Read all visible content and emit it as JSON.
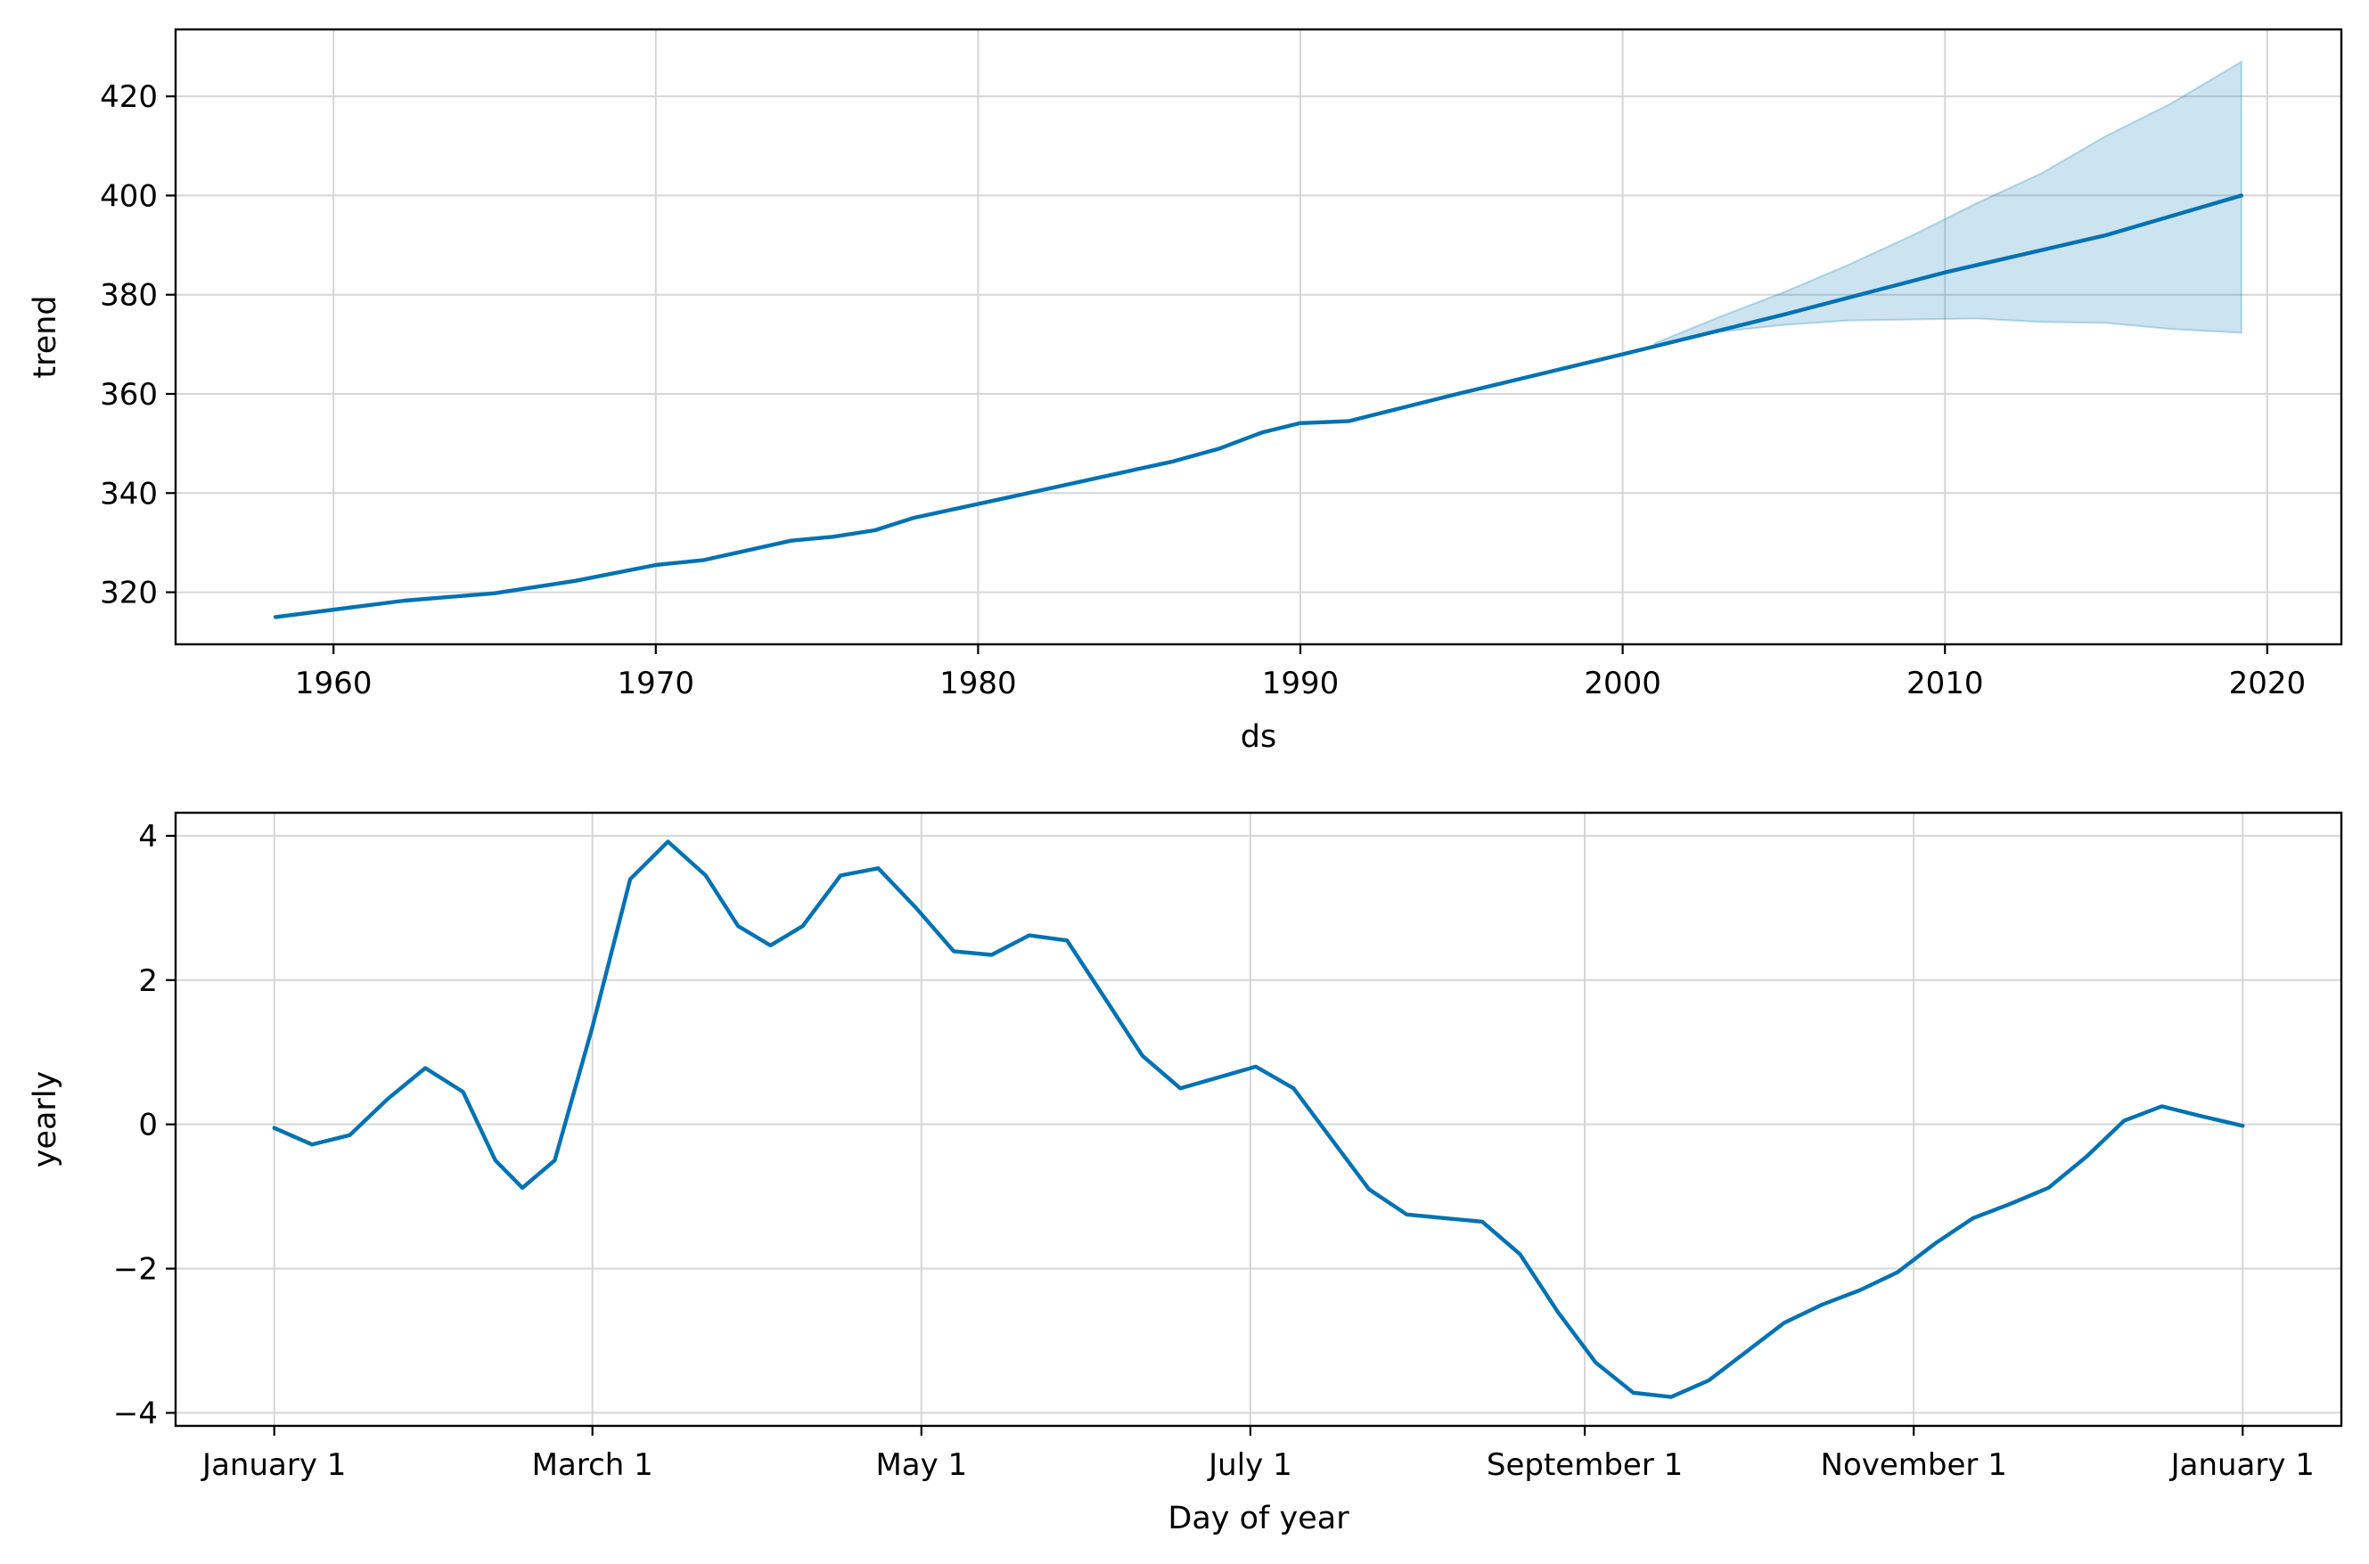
{
  "chart_data": [
    {
      "type": "line",
      "xlabel": "ds",
      "ylabel": "trend",
      "x_ticks": [
        1960,
        1970,
        1980,
        1990,
        2000,
        2010,
        2020
      ],
      "y_ticks": [
        320,
        340,
        360,
        380,
        400,
        420
      ],
      "xlim": [
        1955.1,
        2022.3
      ],
      "ylim": [
        309.5,
        433.5
      ],
      "grid": true,
      "colors": {
        "line": "#0072b2",
        "band": "#0072b2"
      },
      "series": [
        {
          "type": "line",
          "x": [
            1958.2,
            1962.2,
            1965.0,
            1967.5,
            1970.0,
            1971.5,
            1974.2,
            1975.5,
            1976.8,
            1978.0,
            1981.0,
            1985.0,
            1986.0,
            1987.5,
            1988.8,
            1990.0,
            1991.5,
            1995.0,
            2000.0,
            2005.0,
            2010.0,
            2015.0,
            2019.2
          ],
          "y": [
            315.0,
            318.3,
            319.8,
            322.3,
            325.5,
            326.5,
            330.4,
            331.2,
            332.5,
            335.0,
            339.2,
            344.9,
            346.3,
            349.0,
            352.2,
            354.1,
            354.5,
            360.2,
            368.0,
            376.0,
            384.5,
            392.0,
            400.0
          ]
        }
      ],
      "uncertainty_band": {
        "x": [
          2001.0,
          2003.0,
          2005.0,
          2007.0,
          2009.0,
          2011.0,
          2013.0,
          2015.0,
          2017.0,
          2019.2
        ],
        "lower": [
          369.6,
          372.5,
          373.9,
          374.8,
          375.0,
          375.2,
          374.5,
          374.3,
          373.1,
          372.3
        ],
        "upper": [
          370.2,
          375.5,
          380.5,
          386.0,
          392.0,
          398.5,
          404.5,
          412.0,
          418.5,
          427.0
        ]
      }
    },
    {
      "type": "line",
      "xlabel": "Day of year",
      "ylabel": "yearly",
      "x_ticks": [
        "January 1",
        "March 1",
        "May 1",
        "July 1",
        "September 1",
        "November 1",
        "January 1"
      ],
      "y_ticks": [
        -4,
        -2,
        0,
        2,
        4
      ],
      "y_tick_labels": [
        "−4",
        "−2",
        "0",
        "2",
        "4"
      ],
      "xlim": [
        -18.3,
        383.3
      ],
      "ylim": [
        -4.18,
        4.32
      ],
      "grid": true,
      "colors": {
        "line": "#0072b2"
      },
      "series": [
        {
          "type": "line",
          "x": [
            0,
            7,
            14,
            21,
            28,
            35,
            41,
            46,
            52,
            59,
            66,
            73,
            80,
            86,
            92,
            98,
            105,
            112,
            119,
            126,
            133,
            140,
            147,
            154,
            161,
            168,
            175,
            182,
            189,
            196,
            203,
            210,
            217,
            224,
            231,
            238,
            245,
            252,
            259,
            266,
            273,
            280,
            287,
            294,
            301,
            308,
            315,
            322,
            329,
            336,
            343,
            350,
            357,
            365
          ],
          "y": [
            -0.05,
            -0.28,
            -0.15,
            0.35,
            0.78,
            0.45,
            -0.5,
            -0.88,
            -0.5,
            1.35,
            3.4,
            3.92,
            3.45,
            2.75,
            2.48,
            2.75,
            3.45,
            3.55,
            3.0,
            2.4,
            2.35,
            2.62,
            2.55,
            1.75,
            0.95,
            0.5,
            0.65,
            0.8,
            0.5,
            -0.2,
            -0.9,
            -1.25,
            -1.3,
            -1.35,
            -1.8,
            -2.6,
            -3.3,
            -3.72,
            -3.78,
            -3.55,
            -3.15,
            -2.75,
            -2.5,
            -2.3,
            -2.05,
            -1.65,
            -1.3,
            -1.1,
            -0.88,
            -0.45,
            0.05,
            0.25,
            0.12,
            -0.02
          ]
        }
      ]
    }
  ]
}
